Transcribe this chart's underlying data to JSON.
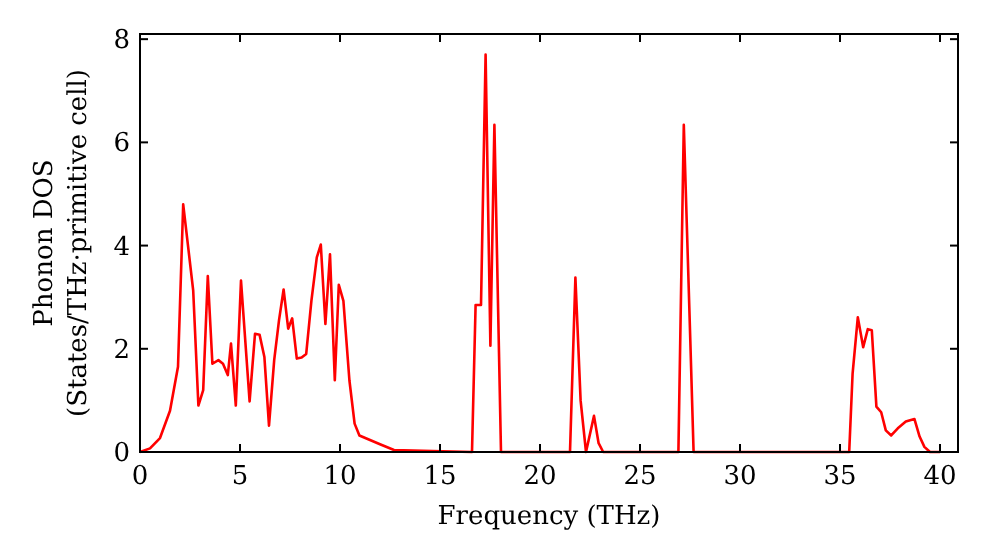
{
  "chart_data": {
    "type": "line",
    "xlabel": "Frequency (THz)",
    "ylabel": "Phonon DOS\n(States/THz·primitive cell)",
    "xlim": [
      0,
      40.9
    ],
    "ylim": [
      0,
      8.1
    ],
    "xticks": [
      0,
      5,
      10,
      15,
      20,
      25,
      30,
      35,
      40
    ],
    "yticks": [
      0,
      2,
      4,
      6,
      8
    ],
    "grid": false,
    "marker": "none",
    "line_style": "solid",
    "series": [
      {
        "color": "#ff0000",
        "x": [
          0,
          0.5,
          1,
          1.5,
          1.9,
          2.16,
          2.66,
          2.92,
          3.16,
          3.39,
          3.62,
          3.92,
          4.15,
          4.39,
          4.55,
          4.79,
          5.05,
          5.48,
          5.75,
          5.98,
          6.22,
          6.45,
          6.71,
          6.95,
          7.18,
          7.41,
          7.61,
          7.84,
          8.08,
          8.31,
          8.57,
          8.84,
          9.04,
          9.27,
          9.5,
          9.74,
          9.94,
          10.17,
          10.47,
          10.73,
          10.97,
          12,
          12.7,
          16.6,
          16.78,
          17.05,
          17.28,
          17.52,
          17.72,
          18.05,
          21.5,
          21.77,
          22.03,
          22.3,
          22.7,
          22.93,
          23.16,
          26.92,
          27.19,
          27.52,
          27.68,
          35.46,
          35.63,
          35.89,
          36.16,
          36.39,
          36.59,
          36.82,
          37.06,
          37.29,
          37.56,
          37.89,
          38.29,
          38.72,
          38.98,
          39.22,
          39.5,
          40
        ],
        "values": [
          0,
          0.07,
          0.27,
          0.8,
          1.65,
          4.8,
          3.13,
          0.9,
          1.2,
          3.41,
          1.71,
          1.78,
          1.71,
          1.49,
          2.1,
          0.9,
          3.32,
          0.98,
          2.29,
          2.27,
          1.84,
          0.51,
          1.78,
          2.55,
          3.15,
          2.39,
          2.59,
          1.81,
          1.83,
          1.9,
          2.93,
          3.77,
          4.02,
          2.48,
          3.83,
          1.39,
          3.24,
          2.93,
          1.39,
          0.55,
          0.32,
          0.15,
          0.04,
          0,
          2.85,
          2.85,
          7.7,
          2.06,
          6.34,
          0,
          0,
          3.38,
          1.0,
          0,
          0.7,
          0.17,
          0,
          0,
          6.34,
          2.1,
          0,
          0,
          1.52,
          2.61,
          2.03,
          2.38,
          2.36,
          0.88,
          0.77,
          0.42,
          0.32,
          0.46,
          0.59,
          0.64,
          0.3,
          0.1,
          0,
          0
        ]
      }
    ]
  }
}
